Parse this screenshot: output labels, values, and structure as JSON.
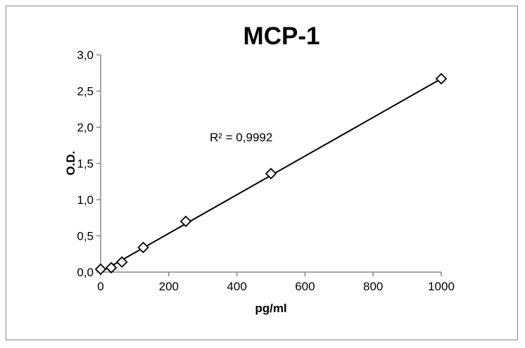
{
  "chart_data": {
    "type": "scatter",
    "title": "MCP-1",
    "xlabel": "pg/ml",
    "ylabel": "O.D.",
    "xlim": [
      0,
      1000
    ],
    "ylim": [
      0,
      3.0
    ],
    "x_ticks": [
      "0",
      "200",
      "400",
      "600",
      "800",
      "1000"
    ],
    "y_ticks": [
      "0,0",
      "0,5",
      "1,0",
      "1,5",
      "2,0",
      "2,5",
      "3,0"
    ],
    "grid": false,
    "points": [
      {
        "x": 0,
        "y": 0.04
      },
      {
        "x": 31.25,
        "y": 0.06
      },
      {
        "x": 62.5,
        "y": 0.14
      },
      {
        "x": 125,
        "y": 0.34
      },
      {
        "x": 250,
        "y": 0.7
      },
      {
        "x": 500,
        "y": 1.36
      },
      {
        "x": 1000,
        "y": 2.67
      }
    ],
    "trendline": {
      "type": "linear",
      "x": [
        0,
        1000
      ],
      "y": [
        0.0,
        2.67
      ]
    },
    "annotation": "R² = 0,9992",
    "marker": "diamond-open",
    "colors": {
      "marker": "#000000",
      "line": "#000000",
      "axis": "#888888"
    }
  }
}
